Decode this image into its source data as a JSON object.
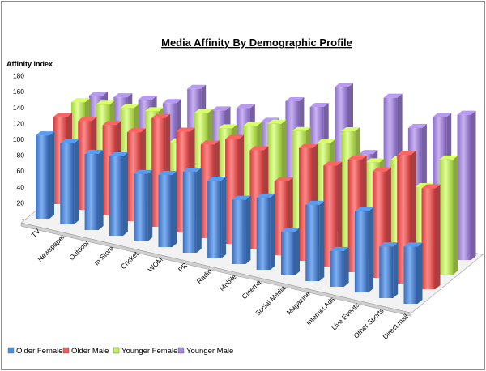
{
  "chart_data": {
    "type": "bar",
    "subtype": "3d-clustered-depth",
    "title": "Media Affinity By Demographic Profile",
    "ylabel": "Affinity Index",
    "xlabel": "",
    "ylim": [
      0,
      180
    ],
    "yticks": [
      "-",
      "20",
      "40",
      "60",
      "80",
      "100",
      "120",
      "140",
      "160",
      "180"
    ],
    "categories": [
      "TV",
      "Newspaper",
      "Outdoor",
      "In Store",
      "Cricket",
      "WOM",
      "PR",
      "Radio",
      "Mobile",
      "Cinema",
      "Social Media",
      "Magazine",
      "Internet Ads",
      "Live Events",
      "Other Sports",
      "Direct mail"
    ],
    "series": [
      {
        "name": "Older Female",
        "color": "#4f8fe0",
        "values": [
          105,
          102,
          96,
          100,
          85,
          91,
          102,
          98,
          81,
          91,
          55,
          96,
          45,
          102,
          65,
          72
        ]
      },
      {
        "name": "Older Male",
        "color": "#ef5b5b",
        "values": [
          110,
          112,
          114,
          112,
          137,
          127,
          118,
          132,
          125,
          93,
          142,
          127,
          142,
          134,
          162,
          127
        ]
      },
      {
        "name": "Younger Female",
        "color": "#c5ef5d",
        "values": [
          110,
          114,
          117,
          120,
          88,
          132,
          120,
          130,
          140,
          138,
          130,
          152,
          120,
          130,
          103,
          145
        ]
      },
      {
        "name": "Younger Male",
        "color": "#a78bdd",
        "values": [
          100,
          105,
          109,
          112,
          137,
          117,
          127,
          117,
          150,
          150,
          182,
          105,
          183,
          152,
          173,
          183
        ]
      }
    ],
    "legend_position": "bottom",
    "grid": false
  }
}
